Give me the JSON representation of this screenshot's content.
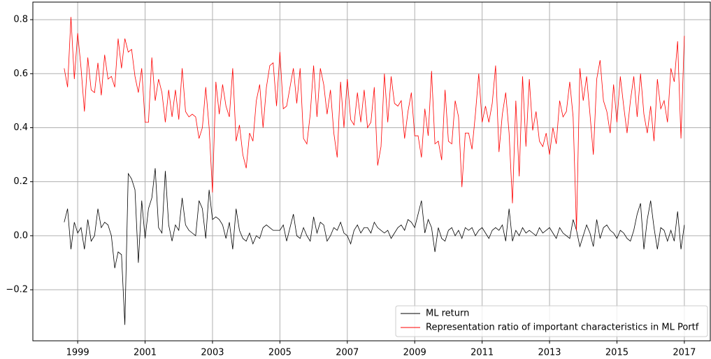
{
  "chart_data": {
    "type": "line",
    "x": [
      1998.6,
      1998.7,
      1998.8,
      1998.9,
      1999.0,
      1999.1,
      1999.2,
      1999.3,
      1999.4,
      1999.5,
      1999.6,
      1999.7,
      1999.8,
      1999.9,
      2000.0,
      2000.1,
      2000.2,
      2000.3,
      2000.4,
      2000.5,
      2000.6,
      2000.7,
      2000.8,
      2000.9,
      2001.0,
      2001.1,
      2001.2,
      2001.3,
      2001.4,
      2001.5,
      2001.6,
      2001.7,
      2001.8,
      2001.9,
      2002.0,
      2002.1,
      2002.2,
      2002.3,
      2002.4,
      2002.5,
      2002.6,
      2002.7,
      2002.8,
      2002.9,
      2003.0,
      2003.1,
      2003.2,
      2003.3,
      2003.4,
      2003.5,
      2003.6,
      2003.7,
      2003.8,
      2003.9,
      2004.0,
      2004.1,
      2004.2,
      2004.3,
      2004.4,
      2004.5,
      2004.6,
      2004.7,
      2004.8,
      2004.9,
      2005.0,
      2005.1,
      2005.2,
      2005.3,
      2005.4,
      2005.5,
      2005.6,
      2005.7,
      2005.8,
      2005.9,
      2006.0,
      2006.1,
      2006.2,
      2006.3,
      2006.4,
      2006.5,
      2006.6,
      2006.7,
      2006.8,
      2006.9,
      2007.0,
      2007.1,
      2007.2,
      2007.3,
      2007.4,
      2007.5,
      2007.6,
      2007.7,
      2007.8,
      2007.9,
      2008.0,
      2008.1,
      2008.2,
      2008.3,
      2008.4,
      2008.5,
      2008.6,
      2008.7,
      2008.8,
      2008.9,
      2009.0,
      2009.1,
      2009.2,
      2009.3,
      2009.4,
      2009.5,
      2009.6,
      2009.7,
      2009.8,
      2009.9,
      2010.0,
      2010.1,
      2010.2,
      2010.3,
      2010.4,
      2010.5,
      2010.6,
      2010.7,
      2010.8,
      2010.9,
      2011.0,
      2011.1,
      2011.2,
      2011.3,
      2011.4,
      2011.5,
      2011.6,
      2011.7,
      2011.8,
      2011.9,
      2012.0,
      2012.1,
      2012.2,
      2012.3,
      2012.4,
      2012.5,
      2012.6,
      2012.7,
      2012.8,
      2012.9,
      2013.0,
      2013.1,
      2013.2,
      2013.3,
      2013.4,
      2013.5,
      2013.6,
      2013.7,
      2013.8,
      2013.9,
      2014.0,
      2014.1,
      2014.2,
      2014.3,
      2014.4,
      2014.5,
      2014.6,
      2014.7,
      2014.8,
      2014.9,
      2015.0,
      2015.1,
      2015.2,
      2015.3,
      2015.4,
      2015.5,
      2015.6,
      2015.7,
      2015.8,
      2015.9,
      2016.0,
      2016.1,
      2016.2,
      2016.3,
      2016.4,
      2016.5,
      2016.6,
      2016.7,
      2016.8,
      2016.9,
      2017.0
    ],
    "series": [
      {
        "name": "ML return",
        "color": "#000000",
        "values": [
          0.05,
          0.1,
          -0.05,
          0.05,
          0.01,
          0.03,
          -0.05,
          0.06,
          -0.02,
          0.0,
          0.1,
          0.03,
          0.05,
          0.04,
          0.0,
          -0.12,
          -0.06,
          -0.07,
          -0.33,
          0.23,
          0.21,
          0.17,
          -0.1,
          0.13,
          -0.01,
          0.1,
          0.14,
          0.25,
          0.03,
          0.01,
          0.24,
          0.04,
          -0.02,
          0.04,
          0.02,
          0.14,
          0.04,
          0.02,
          0.01,
          0.0,
          0.13,
          0.1,
          -0.01,
          0.17,
          0.06,
          0.07,
          0.06,
          0.04,
          -0.01,
          0.05,
          -0.05,
          0.1,
          0.02,
          -0.01,
          -0.02,
          0.01,
          -0.03,
          0.0,
          -0.01,
          0.03,
          0.04,
          0.03,
          0.02,
          0.02,
          0.02,
          0.04,
          -0.02,
          0.03,
          0.08,
          0.0,
          -0.01,
          0.03,
          0.0,
          -0.02,
          0.07,
          0.01,
          0.05,
          0.04,
          -0.02,
          0.0,
          0.03,
          0.02,
          0.05,
          0.01,
          0.0,
          -0.03,
          0.02,
          0.04,
          0.01,
          0.03,
          0.03,
          0.01,
          0.05,
          0.03,
          0.02,
          0.01,
          0.02,
          -0.01,
          0.01,
          0.03,
          0.04,
          0.02,
          0.06,
          0.05,
          0.03,
          0.08,
          0.13,
          0.01,
          0.06,
          0.03,
          -0.06,
          0.03,
          -0.01,
          -0.02,
          0.02,
          0.03,
          0.0,
          0.02,
          -0.01,
          0.03,
          0.02,
          0.03,
          0.0,
          0.02,
          0.03,
          0.01,
          -0.01,
          0.02,
          0.03,
          0.02,
          0.04,
          -0.02,
          0.1,
          -0.02,
          0.02,
          0.0,
          0.03,
          0.01,
          0.02,
          0.01,
          0.0,
          0.03,
          0.01,
          0.02,
          0.03,
          0.01,
          -0.01,
          0.03,
          0.01,
          0.0,
          -0.01,
          0.06,
          0.02,
          -0.04,
          0.0,
          0.04,
          0.01,
          -0.04,
          0.06,
          -0.01,
          0.03,
          0.04,
          0.02,
          0.01,
          -0.01,
          0.02,
          0.01,
          -0.01,
          -0.02,
          0.02,
          0.08,
          0.12,
          -0.05,
          0.06,
          0.13,
          0.03,
          -0.05,
          0.03,
          0.02,
          -0.02,
          0.02,
          -0.02,
          0.09,
          -0.05,
          0.04
        ]
      },
      {
        "name": "Representation ratio of important characteristics in ML Portf",
        "color": "#ff0000",
        "values": [
          0.62,
          0.55,
          0.81,
          0.58,
          0.75,
          0.62,
          0.46,
          0.66,
          0.54,
          0.53,
          0.64,
          0.52,
          0.67,
          0.58,
          0.59,
          0.55,
          0.73,
          0.62,
          0.73,
          0.68,
          0.69,
          0.59,
          0.53,
          0.62,
          0.42,
          0.42,
          0.66,
          0.5,
          0.58,
          0.53,
          0.42,
          0.54,
          0.44,
          0.54,
          0.43,
          0.62,
          0.46,
          0.44,
          0.45,
          0.44,
          0.36,
          0.4,
          0.55,
          0.4,
          0.16,
          0.57,
          0.45,
          0.56,
          0.48,
          0.44,
          0.62,
          0.35,
          0.41,
          0.3,
          0.25,
          0.38,
          0.35,
          0.5,
          0.56,
          0.4,
          0.55,
          0.63,
          0.64,
          0.48,
          0.68,
          0.47,
          0.48,
          0.55,
          0.62,
          0.49,
          0.62,
          0.36,
          0.34,
          0.45,
          0.63,
          0.44,
          0.62,
          0.56,
          0.45,
          0.54,
          0.38,
          0.29,
          0.57,
          0.4,
          0.58,
          0.43,
          0.41,
          0.53,
          0.42,
          0.54,
          0.4,
          0.42,
          0.55,
          0.26,
          0.33,
          0.6,
          0.42,
          0.59,
          0.49,
          0.48,
          0.5,
          0.36,
          0.46,
          0.53,
          0.37,
          0.37,
          0.29,
          0.47,
          0.37,
          0.61,
          0.34,
          0.35,
          0.28,
          0.54,
          0.35,
          0.34,
          0.5,
          0.44,
          0.18,
          0.38,
          0.38,
          0.32,
          0.45,
          0.6,
          0.42,
          0.48,
          0.42,
          0.49,
          0.63,
          0.31,
          0.45,
          0.53,
          0.38,
          0.12,
          0.5,
          0.22,
          0.59,
          0.33,
          0.58,
          0.39,
          0.46,
          0.35,
          0.33,
          0.38,
          0.3,
          0.4,
          0.34,
          0.5,
          0.44,
          0.46,
          0.57,
          0.44,
          0.02,
          0.62,
          0.5,
          0.59,
          0.45,
          0.3,
          0.58,
          0.65,
          0.5,
          0.46,
          0.38,
          0.56,
          0.42,
          0.59,
          0.48,
          0.38,
          0.5,
          0.59,
          0.44,
          0.6,
          0.45,
          0.38,
          0.48,
          0.35,
          0.58,
          0.47,
          0.5,
          0.42,
          0.62,
          0.57,
          0.72,
          0.36,
          0.74
        ]
      }
    ],
    "xlim": [
      1997.67,
      2017.77
    ],
    "xticks": [
      1999,
      2001,
      2003,
      2005,
      2007,
      2009,
      2011,
      2013,
      2015,
      2017
    ],
    "ylim": [
      -0.389,
      0.865
    ],
    "yticks": [
      {
        "value": -0.2,
        "label": "−0.2"
      },
      {
        "value": 0,
        "label": "0.0"
      },
      {
        "value": 0.2,
        "label": "0.2"
      },
      {
        "value": 0.4,
        "label": "0.4"
      },
      {
        "value": 0.6,
        "label": "0.6"
      },
      {
        "value": 0.8,
        "label": "0.8"
      }
    ],
    "grid": true,
    "legend": "lower right"
  }
}
